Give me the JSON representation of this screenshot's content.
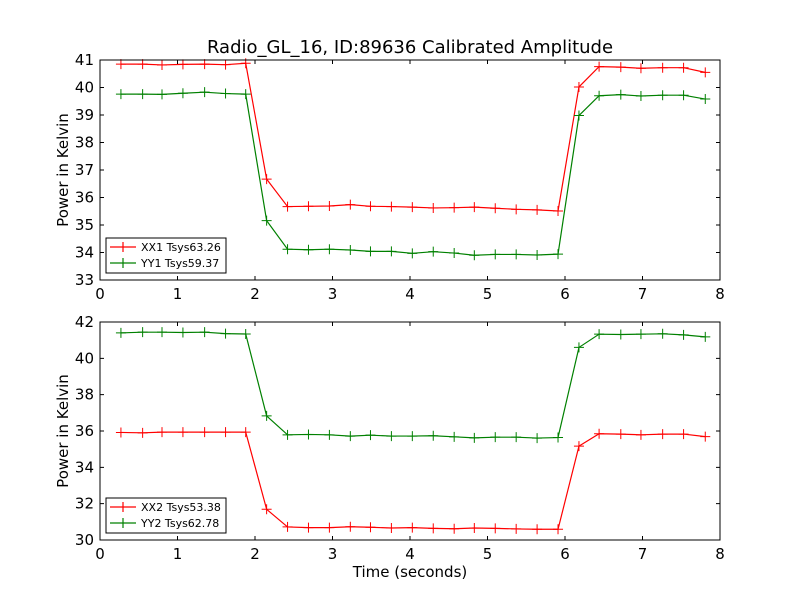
{
  "chart_data": [
    {
      "type": "line",
      "title": "Radio_GL_16, ID:89636 Calibrated Amplitude",
      "xlabel": "",
      "ylabel": "Power in Kelvin",
      "xlim": [
        0,
        8
      ],
      "ylim": [
        33,
        41
      ],
      "xticks": [
        "0",
        "1",
        "2",
        "3",
        "4",
        "5",
        "6",
        "7",
        "8"
      ],
      "yticks": [
        "33",
        "34",
        "35",
        "36",
        "37",
        "38",
        "39",
        "40",
        "41"
      ],
      "grid": false,
      "legend_position": "lower-left",
      "x": [
        0.27,
        0.55,
        0.8,
        1.07,
        1.35,
        1.62,
        1.88,
        2.15,
        2.42,
        2.69,
        2.96,
        3.23,
        3.49,
        3.76,
        4.03,
        4.3,
        4.57,
        4.83,
        5.1,
        5.37,
        5.64,
        5.91,
        6.18,
        6.44,
        6.72,
        6.98,
        7.26,
        7.53,
        7.81
      ],
      "series": [
        {
          "name": "XX1 Tsys63.26",
          "color": "#ff0000",
          "values": [
            40.85,
            40.85,
            40.82,
            40.84,
            40.85,
            40.83,
            40.88,
            36.67,
            35.67,
            35.68,
            35.69,
            35.74,
            35.68,
            35.67,
            35.65,
            35.62,
            35.63,
            35.65,
            35.61,
            35.57,
            35.55,
            35.51,
            40.02,
            40.76,
            40.74,
            40.7,
            40.72,
            40.72,
            40.55
          ]
        },
        {
          "name": "YY1 Tsys59.37",
          "color": "#008000",
          "values": [
            39.76,
            39.76,
            39.75,
            39.79,
            39.83,
            39.78,
            39.76,
            35.16,
            34.12,
            34.1,
            34.12,
            34.09,
            34.04,
            34.04,
            33.97,
            34.03,
            33.98,
            33.9,
            33.93,
            33.93,
            33.91,
            33.94,
            38.98,
            39.7,
            39.74,
            39.69,
            39.72,
            39.72,
            39.58
          ]
        }
      ]
    },
    {
      "type": "line",
      "title": "",
      "xlabel": "Time (seconds)",
      "ylabel": "Power in Kelvin",
      "xlim": [
        0,
        8
      ],
      "ylim": [
        30,
        42
      ],
      "xticks": [
        "0",
        "1",
        "2",
        "3",
        "4",
        "5",
        "6",
        "7",
        "8"
      ],
      "yticks": [
        "30",
        "32",
        "34",
        "36",
        "38",
        "40",
        "42"
      ],
      "grid": false,
      "legend_position": "lower-left",
      "x": [
        0.27,
        0.55,
        0.8,
        1.07,
        1.35,
        1.62,
        1.88,
        2.15,
        2.42,
        2.69,
        2.96,
        3.23,
        3.49,
        3.76,
        4.03,
        4.3,
        4.57,
        4.83,
        5.1,
        5.37,
        5.64,
        5.91,
        6.18,
        6.44,
        6.72,
        6.98,
        7.26,
        7.53,
        7.81
      ],
      "series": [
        {
          "name": "XX2 Tsys53.38",
          "color": "#ff0000",
          "values": [
            35.92,
            35.9,
            35.94,
            35.94,
            35.94,
            35.94,
            35.94,
            31.69,
            30.72,
            30.68,
            30.68,
            30.73,
            30.7,
            30.66,
            30.68,
            30.64,
            30.62,
            30.66,
            30.64,
            30.61,
            30.59,
            30.59,
            35.17,
            35.85,
            35.83,
            35.79,
            35.83,
            35.83,
            35.69
          ]
        },
        {
          "name": "YY2 Tsys62.78",
          "color": "#008000",
          "values": [
            41.4,
            41.44,
            41.44,
            41.42,
            41.44,
            41.36,
            41.34,
            36.83,
            35.79,
            35.81,
            35.79,
            35.72,
            35.77,
            35.72,
            35.72,
            35.74,
            35.68,
            35.62,
            35.66,
            35.66,
            35.61,
            35.64,
            40.6,
            41.33,
            41.31,
            41.33,
            41.35,
            41.29,
            41.18
          ]
        }
      ]
    }
  ]
}
